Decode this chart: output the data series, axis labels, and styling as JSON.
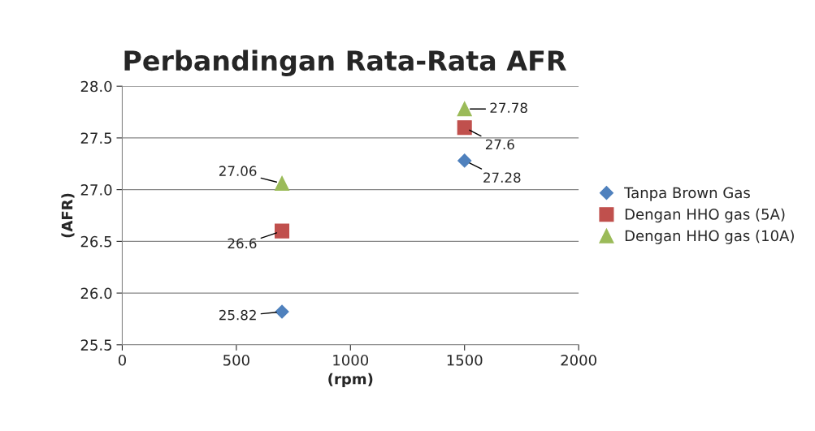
{
  "chart_data": {
    "type": "scatter",
    "title": "Perbandingan Rata-Rata AFR",
    "xlabel": "(rpm)",
    "ylabel": "(AFR)",
    "x": [
      700,
      1500
    ],
    "xlim": [
      0,
      2000
    ],
    "xticks": [
      0,
      500,
      1000,
      1500,
      2000
    ],
    "ylim": [
      25.5,
      28.0
    ],
    "yticks": [
      25.5,
      {
        "value": 26,
        "label": "26.0"
      },
      26.5,
      {
        "value": 27,
        "label": "27.0"
      },
      27.5,
      {
        "value": 28,
        "label": "28.0"
      }
    ],
    "grid": "y",
    "legend": "right",
    "data_labels": true,
    "series": [
      {
        "name": "Tanpa Brown Gas",
        "color": "#4f81bd",
        "marker": "diamond",
        "values": [
          25.82,
          27.28
        ]
      },
      {
        "name": "Dengan HHO gas (5A)",
        "color": "#c0504d",
        "marker": "square",
        "values": [
          26.6,
          27.6
        ]
      },
      {
        "name": "Dengan HHO gas (10A)",
        "color": "#9bbb59",
        "marker": "triangle",
        "values": [
          27.06,
          27.78
        ]
      }
    ]
  }
}
